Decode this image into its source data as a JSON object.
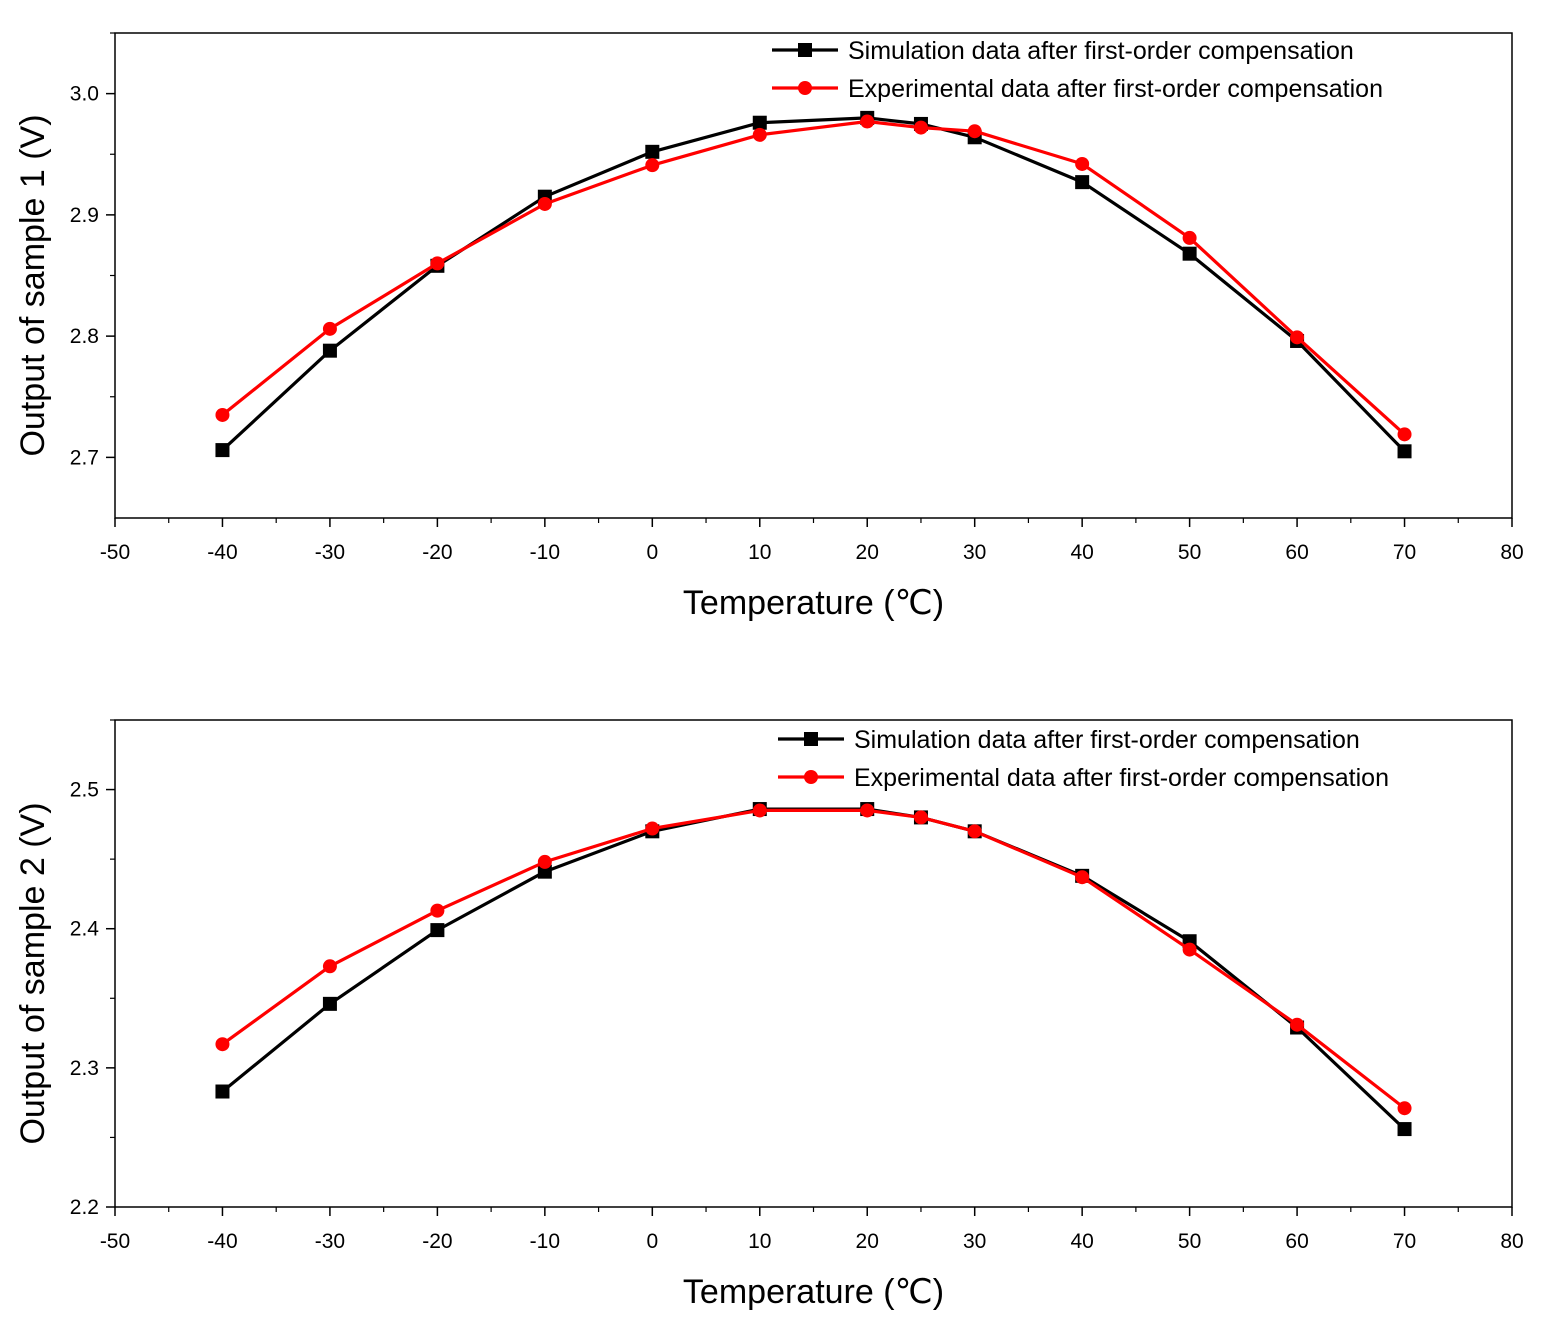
{
  "colors": {
    "simulation": "#000000",
    "experimental": "#ff0000",
    "axis": "#000000",
    "background": "#ffffff"
  },
  "chart_data": [
    {
      "type": "line",
      "xlabel": "Temperature (℃)",
      "ylabel": "Output of sample 1 (V)",
      "xlim": [
        -50,
        80
      ],
      "ylim": [
        2.65,
        3.05
      ],
      "xticks": [
        -50,
        -40,
        -30,
        -20,
        -10,
        0,
        10,
        20,
        30,
        40,
        50,
        60,
        70,
        80
      ],
      "yticks": [
        2.7,
        2.8,
        2.9,
        3.0
      ],
      "xtick_labels": [
        "-50",
        "-40",
        "-30",
        "-20",
        "-10",
        "0",
        "10",
        "20",
        "30",
        "40",
        "50",
        "60",
        "70",
        "80"
      ],
      "ytick_labels": [
        "2.7",
        "2.8",
        "2.9",
        "3.0"
      ],
      "legend_position": "top-right",
      "grid": false,
      "series": [
        {
          "name": "Simulation data after first-order compensation",
          "marker": "square",
          "color_key": "simulation",
          "x": [
            -40,
            -30,
            -20,
            -10,
            0,
            10,
            20,
            25,
            30,
            40,
            50,
            60,
            70
          ],
          "y": [
            2.706,
            2.788,
            2.858,
            2.915,
            2.952,
            2.976,
            2.98,
            2.975,
            2.964,
            2.927,
            2.868,
            2.796,
            2.705
          ]
        },
        {
          "name": "Experimental data after first-order compensation",
          "marker": "circle",
          "color_key": "experimental",
          "x": [
            -40,
            -30,
            -20,
            -10,
            0,
            10,
            20,
            25,
            30,
            40,
            50,
            60,
            70
          ],
          "y": [
            2.735,
            2.806,
            2.86,
            2.909,
            2.941,
            2.966,
            2.977,
            2.972,
            2.969,
            2.942,
            2.881,
            2.799,
            2.719
          ]
        }
      ]
    },
    {
      "type": "line",
      "xlabel": "Temperature (℃)",
      "ylabel": "Output of sample 2 (V)",
      "xlim": [
        -50,
        80
      ],
      "ylim": [
        2.2,
        2.55
      ],
      "xticks": [
        -50,
        -40,
        -30,
        -20,
        -10,
        0,
        10,
        20,
        30,
        40,
        50,
        60,
        70,
        80
      ],
      "yticks": [
        2.2,
        2.3,
        2.4,
        2.5
      ],
      "xtick_labels": [
        "-50",
        "-40",
        "-30",
        "-20",
        "-10",
        "0",
        "10",
        "20",
        "30",
        "40",
        "50",
        "60",
        "70",
        "80"
      ],
      "ytick_labels": [
        "2.2",
        "2.3",
        "2.4",
        "2.5"
      ],
      "legend_position": "top-right",
      "grid": false,
      "series": [
        {
          "name": "Simulation data after first-order compensation",
          "marker": "square",
          "color_key": "simulation",
          "x": [
            -40,
            -30,
            -20,
            -10,
            0,
            10,
            20,
            25,
            30,
            40,
            50,
            60,
            70
          ],
          "y": [
            2.283,
            2.346,
            2.399,
            2.441,
            2.47,
            2.486,
            2.486,
            2.48,
            2.47,
            2.438,
            2.391,
            2.329,
            2.256
          ]
        },
        {
          "name": "Experimental data after first-order compensation",
          "marker": "circle",
          "color_key": "experimental",
          "x": [
            -40,
            -30,
            -20,
            -10,
            0,
            10,
            20,
            25,
            30,
            40,
            50,
            60,
            70
          ],
          "y": [
            2.317,
            2.373,
            2.413,
            2.448,
            2.472,
            2.485,
            2.485,
            2.48,
            2.47,
            2.437,
            2.385,
            2.331,
            2.271
          ]
        }
      ]
    }
  ]
}
